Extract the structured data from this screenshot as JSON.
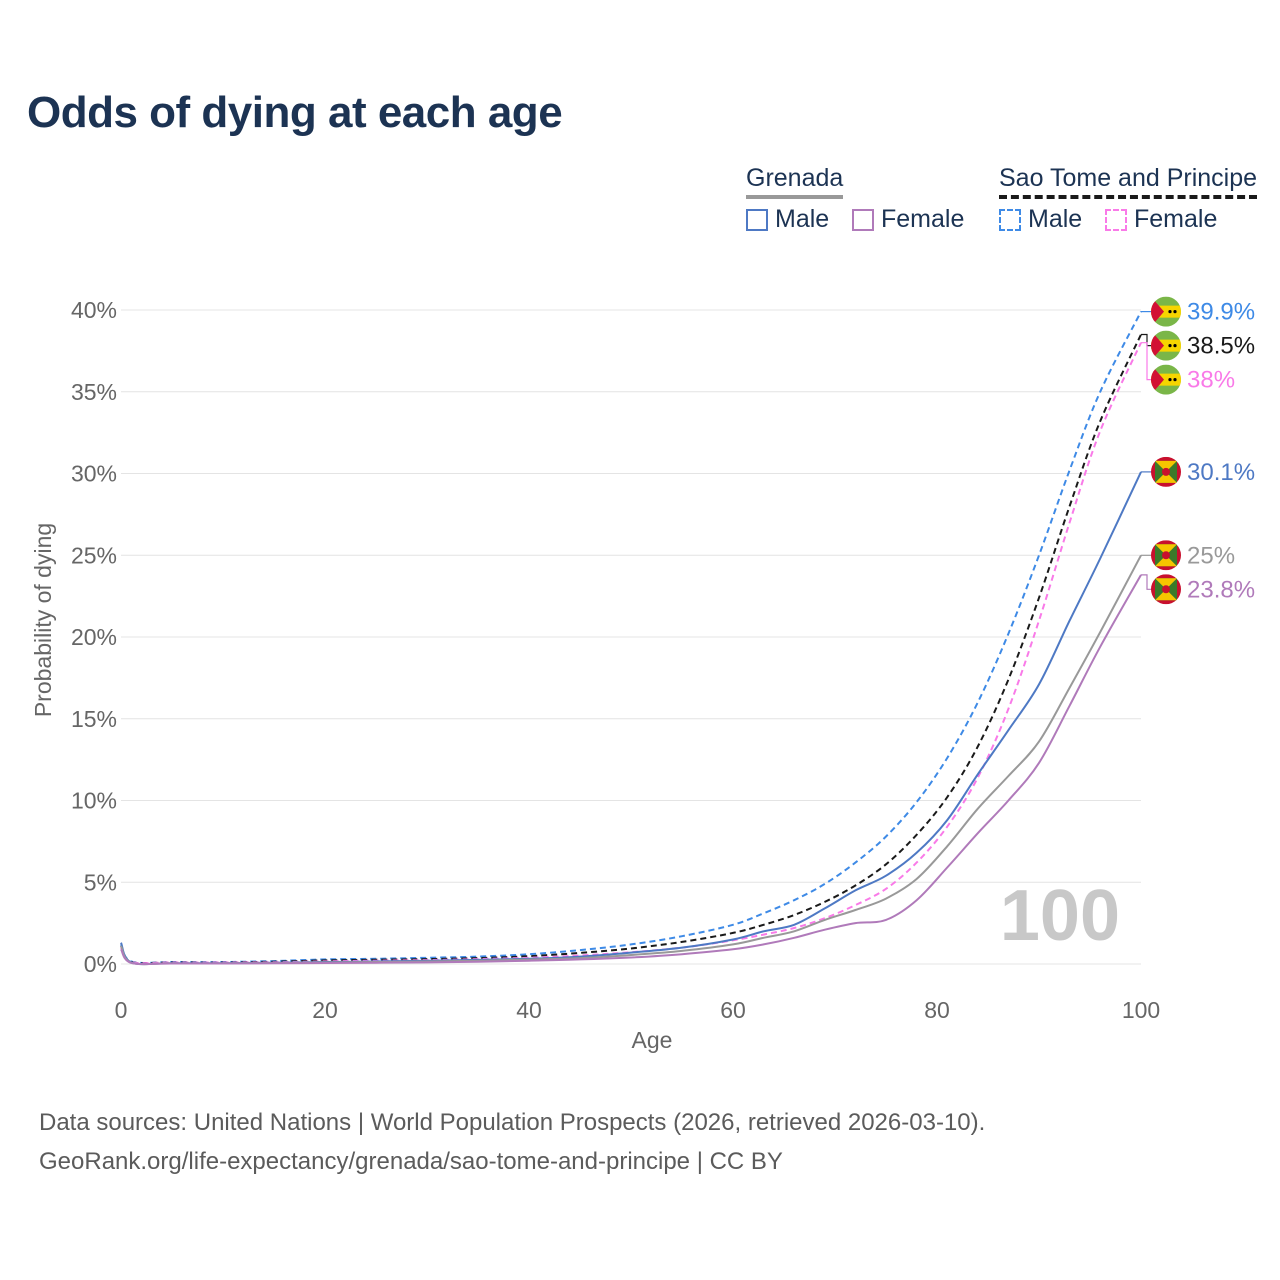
{
  "title": "Odds of dying at each age",
  "legend": {
    "groups": [
      {
        "name": "Grenada",
        "line_color": "#999999",
        "dashed": false,
        "items": [
          {
            "label": "Male",
            "color": "#4e79c4"
          },
          {
            "label": "Female",
            "color": "#b07aba"
          }
        ]
      },
      {
        "name": "Sao Tome and Principe",
        "line_color": "#1a1a1a",
        "dashed": true,
        "items": [
          {
            "label": "Male",
            "color": "#3e8ae6"
          },
          {
            "label": "Female",
            "color": "#f97ae8"
          }
        ]
      }
    ]
  },
  "chart_data": {
    "type": "line",
    "xlabel": "Age",
    "ylabel": "Probability of dying",
    "xlim": [
      0,
      100
    ],
    "ylim": [
      0,
      40
    ],
    "x_ticks": [
      "0",
      "20",
      "40",
      "60",
      "80",
      "100"
    ],
    "y_ticks": [
      "0%",
      "5%",
      "10%",
      "15%",
      "20%",
      "25%",
      "30%",
      "35%",
      "40%"
    ],
    "watermark": "100",
    "x": [
      0,
      1,
      5,
      10,
      15,
      20,
      25,
      30,
      35,
      40,
      45,
      50,
      55,
      60,
      63,
      66,
      69,
      72,
      75,
      78,
      81,
      84,
      87,
      90,
      93,
      96,
      100
    ],
    "series": [
      {
        "name": "Sao Tome and Principe Male",
        "country": "Sao Tome and Principe",
        "sex": "Male",
        "color": "#3e8ae6",
        "dashed": true,
        "end_label": "39.9%",
        "values": [
          1.2,
          0.15,
          0.12,
          0.12,
          0.18,
          0.28,
          0.32,
          0.38,
          0.45,
          0.6,
          0.85,
          1.2,
          1.7,
          2.4,
          3.1,
          3.9,
          4.9,
          6.2,
          7.8,
          9.9,
          12.6,
          16.0,
          20.2,
          25.0,
          30.2,
          35.0,
          39.9
        ]
      },
      {
        "name": "Sao Tome and Principe Total",
        "country": "Sao Tome and Principe",
        "sex": "Total",
        "color": "#1a1a1a",
        "dashed": true,
        "end_label": "38.5%",
        "values": [
          1.1,
          0.13,
          0.1,
          0.1,
          0.14,
          0.22,
          0.26,
          0.3,
          0.36,
          0.48,
          0.68,
          0.95,
          1.35,
          1.9,
          2.4,
          3.0,
          3.8,
          4.8,
          6.1,
          7.9,
          10.2,
          13.3,
          17.4,
          22.4,
          28.0,
          33.2,
          38.5
        ]
      },
      {
        "name": "Sao Tome and Principe Female",
        "country": "Sao Tome and Principe",
        "sex": "Female",
        "color": "#f97ae8",
        "dashed": true,
        "end_label": "38%",
        "values": [
          1.0,
          0.12,
          0.09,
          0.09,
          0.11,
          0.16,
          0.2,
          0.24,
          0.3,
          0.38,
          0.52,
          0.72,
          1.0,
          1.45,
          1.8,
          2.2,
          2.8,
          3.6,
          4.6,
          6.2,
          8.4,
          11.4,
          15.6,
          21.0,
          27.0,
          32.6,
          38.0
        ]
      },
      {
        "name": "Grenada Male",
        "country": "Grenada",
        "sex": "Male",
        "color": "#4e79c4",
        "dashed": false,
        "end_label": "30.1%",
        "values": [
          1.3,
          0.1,
          0.05,
          0.05,
          0.08,
          0.12,
          0.15,
          0.2,
          0.25,
          0.32,
          0.45,
          0.7,
          1.0,
          1.5,
          2.0,
          2.4,
          3.4,
          4.5,
          5.4,
          6.8,
          8.8,
          11.6,
          14.3,
          17.1,
          21.0,
          24.8,
          30.1
        ]
      },
      {
        "name": "Grenada Total",
        "country": "Grenada",
        "sex": "Total",
        "color": "#999999",
        "dashed": false,
        "end_label": "25%",
        "values": [
          1.1,
          0.08,
          0.04,
          0.04,
          0.06,
          0.09,
          0.12,
          0.15,
          0.2,
          0.27,
          0.36,
          0.55,
          0.8,
          1.2,
          1.6,
          2.0,
          2.7,
          3.3,
          4.0,
          5.2,
          7.2,
          9.5,
          11.5,
          13.6,
          16.9,
          20.3,
          25.0
        ]
      },
      {
        "name": "Grenada Female",
        "country": "Grenada",
        "sex": "Female",
        "color": "#b07aba",
        "dashed": false,
        "end_label": "23.8%",
        "values": [
          0.9,
          0.07,
          0.03,
          0.03,
          0.04,
          0.06,
          0.08,
          0.1,
          0.14,
          0.2,
          0.28,
          0.4,
          0.6,
          0.9,
          1.2,
          1.6,
          2.1,
          2.5,
          2.7,
          3.9,
          5.9,
          8.0,
          10.0,
          12.3,
          15.8,
          19.4,
          23.8
        ]
      }
    ]
  },
  "source_line1": "Data sources: United Nations | World Population Prospects (2026, retrieved 2026-03-10).",
  "source_line2": "GeoRank.org/life-expectancy/grenada/sao-tome-and-principe | CC BY"
}
